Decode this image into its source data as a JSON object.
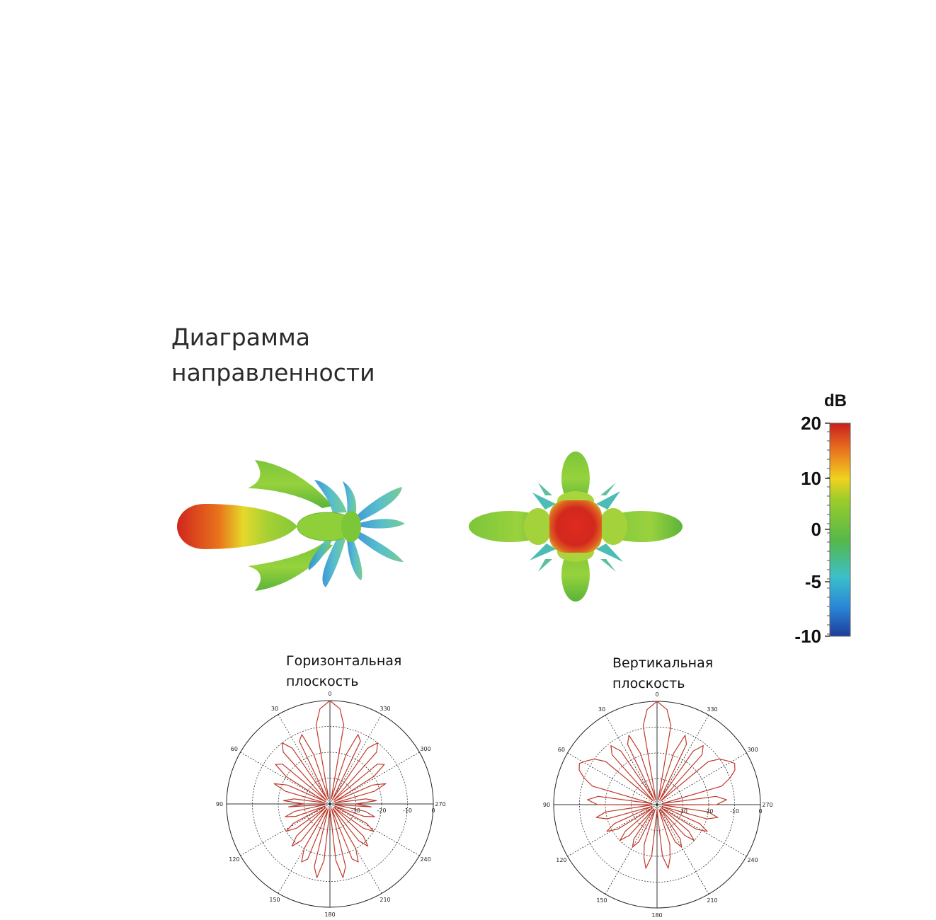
{
  "title": {
    "line1": "Диаграмма",
    "line2": "направленности"
  },
  "views_3d": [
    {
      "name": "side-view",
      "colormap": "jet"
    },
    {
      "name": "front-view",
      "colormap": "jet"
    }
  ],
  "colorbar": {
    "unit": "dB",
    "ticks": [
      "20",
      "10",
      "0",
      "-5",
      "-10"
    ],
    "tick_values": [
      20,
      10,
      0,
      -5,
      -10
    ],
    "colors": [
      "#c8201e",
      "#e8701e",
      "#f0d21e",
      "#9ccd2a",
      "#55b84a",
      "#3cc0c8",
      "#2a88d8",
      "#1e3c9c"
    ]
  },
  "chart_data": [
    {
      "type": "polar",
      "title": "Горизонтальная плоскость",
      "angle_ticks": [
        "0",
        "30",
        "60",
        "90",
        "120",
        "150",
        "180",
        "210",
        "240",
        "270",
        "300",
        "330"
      ],
      "radial_ticks": [
        "-30",
        "-20",
        "-10",
        "0"
      ],
      "rlim": [
        -40,
        0
      ],
      "line_color": "#c0392b",
      "series": [
        {
          "angles": [
            0,
            6,
            10,
            14,
            18,
            22,
            26,
            30,
            34,
            38,
            42,
            46,
            50,
            54,
            58,
            62,
            66,
            70,
            74,
            78,
            82,
            86,
            90,
            94,
            98,
            102,
            106,
            110,
            114,
            118,
            122,
            126,
            130,
            134,
            138,
            142,
            146,
            150,
            154,
            158,
            162,
            166,
            170,
            174,
            180
          ],
          "values": [
            0,
            -3,
            -9,
            -38,
            -20,
            -11,
            -13,
            -38,
            -14,
            -10,
            -13,
            -38,
            -16,
            -14,
            -20,
            -38,
            -22,
            -17,
            -22,
            -38,
            -26,
            -22,
            -30,
            -24,
            -38,
            -26,
            -22,
            -26,
            -38,
            -24,
            -20,
            -24,
            -38,
            -22,
            -18,
            -22,
            -38,
            -20,
            -15,
            -17,
            -38,
            -15,
            -11,
            -18,
            -38
          ]
        }
      ]
    },
    {
      "type": "polar",
      "title": "Вертикальная плоскость",
      "angle_ticks": [
        "0",
        "30",
        "60",
        "90",
        "120",
        "150",
        "180",
        "210",
        "240",
        "270",
        "300",
        "330"
      ],
      "radial_ticks": [
        "-30",
        "-20",
        "-10",
        "0"
      ],
      "rlim": [
        -40,
        0
      ],
      "line_color": "#c0392b",
      "series": [
        {
          "angles": [
            0,
            6,
            10,
            14,
            18,
            22,
            26,
            30,
            34,
            38,
            42,
            46,
            50,
            54,
            58,
            62,
            66,
            70,
            74,
            78,
            82,
            86,
            90,
            94,
            98,
            102,
            106,
            110,
            114,
            118,
            122,
            126,
            130,
            134,
            138,
            142,
            146,
            150,
            154,
            158,
            162,
            166,
            170,
            174,
            180
          ],
          "values": [
            0,
            -3,
            -9,
            -38,
            -19,
            -11,
            -14,
            -38,
            -15,
            -11,
            -14,
            -38,
            -14,
            -10,
            -8,
            -6,
            -7,
            -10,
            -14,
            -38,
            -17,
            -13,
            -17,
            -38,
            -20,
            -16,
            -20,
            -38,
            -22,
            -18,
            -22,
            -38,
            -24,
            -20,
            -24,
            -38,
            -24,
            -21,
            -24,
            -38,
            -24,
            -19,
            -15,
            -20,
            -38
          ]
        }
      ]
    }
  ]
}
